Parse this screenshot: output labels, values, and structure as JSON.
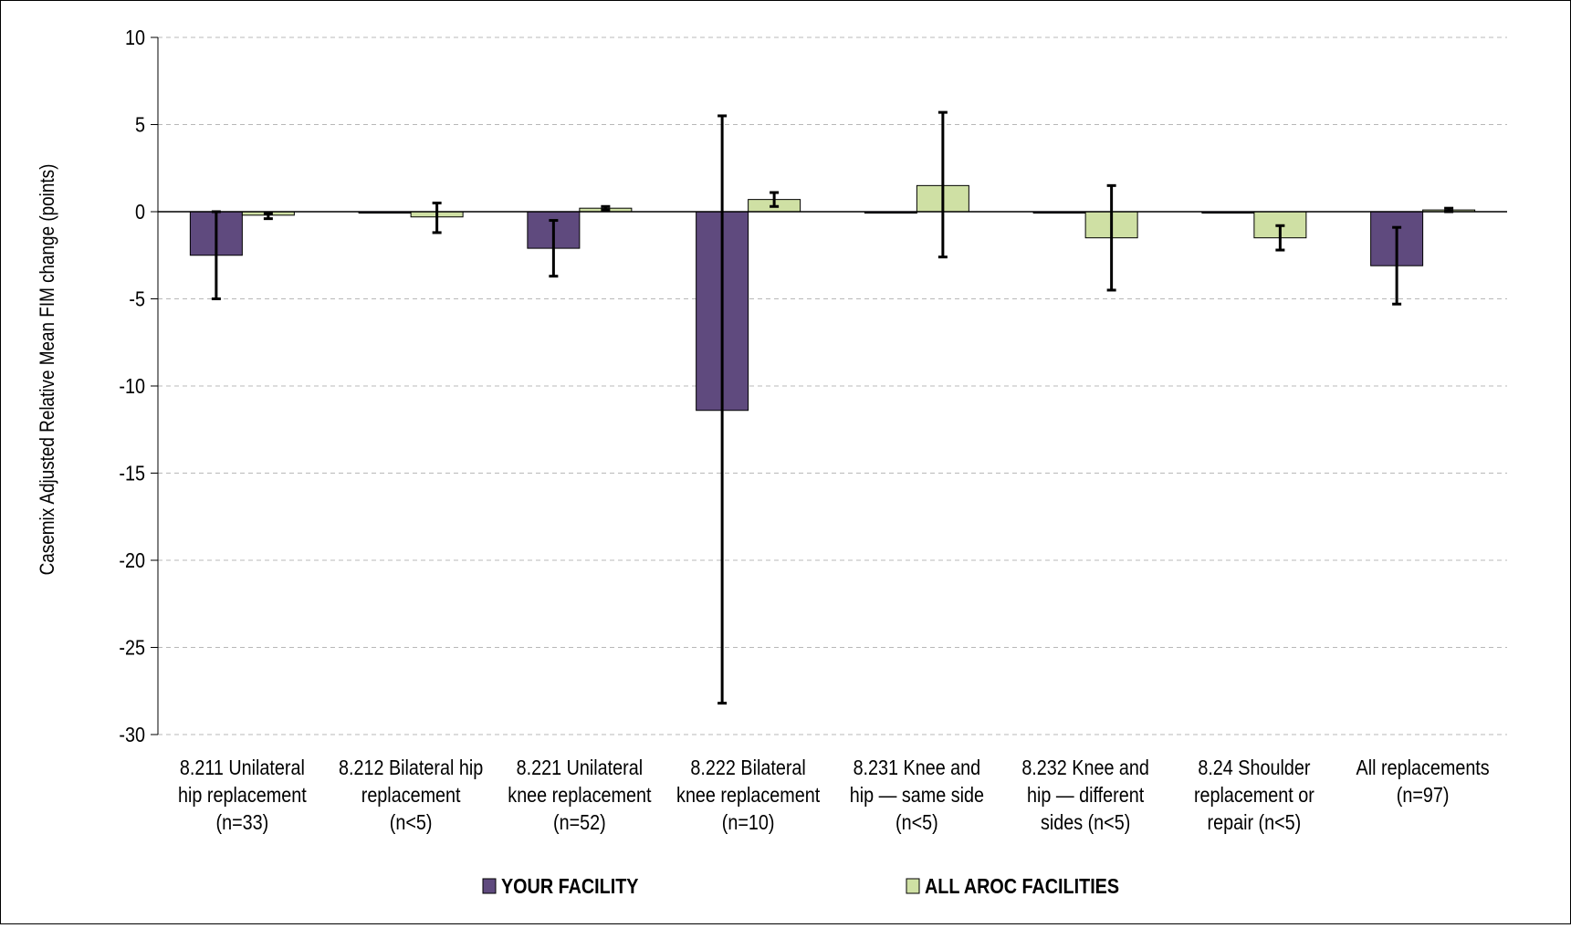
{
  "chart_data": {
    "type": "bar",
    "title": "",
    "xlabel": "",
    "ylabel": "Casemix Adjusted Relative Mean FIM change (points)",
    "ylim": [
      -30,
      10
    ],
    "yticks": [
      10,
      5,
      0,
      -5,
      -10,
      -15,
      -20,
      -25,
      -30
    ],
    "grid": true,
    "legend_position": "bottom",
    "categories": [
      [
        "8.211 Unilateral",
        "hip replacement",
        "(n=33)"
      ],
      [
        "8.212 Bilateral hip",
        "replacement",
        "(n<5)"
      ],
      [
        "8.221 Unilateral",
        "knee replacement",
        "(n=52)"
      ],
      [
        "8.222 Bilateral",
        "knee replacement",
        "(n=10)"
      ],
      [
        "8.231 Knee and",
        "hip — same side",
        "(n<5)"
      ],
      [
        "8.232 Knee and",
        "hip — different",
        "sides (n<5)"
      ],
      [
        "8.24 Shoulder",
        "replacement or",
        "repair (n<5)"
      ],
      [
        "All replacements",
        "(n=97)"
      ]
    ],
    "series": [
      {
        "name": "YOUR FACILITY",
        "color": "#5f4a7e",
        "values": [
          -2.5,
          0,
          -2.1,
          -11.4,
          0,
          0,
          0,
          -3.1
        ],
        "err_low": [
          -5.0,
          0,
          -3.7,
          -28.2,
          0,
          0,
          0,
          -5.3
        ],
        "err_high": [
          0.0,
          0,
          -0.5,
          5.5,
          0,
          0,
          0,
          -0.9
        ]
      },
      {
        "name": "ALL AROC FACILITIES",
        "color": "#cfe0a4",
        "values": [
          -0.2,
          -0.3,
          0.2,
          0.7,
          1.5,
          -1.5,
          -1.5,
          0.1
        ],
        "err_low": [
          -0.4,
          -1.2,
          0.1,
          0.3,
          -2.6,
          -4.5,
          -2.2,
          0.0
        ],
        "err_high": [
          -0.1,
          0.5,
          0.3,
          1.1,
          5.7,
          1.5,
          -0.8,
          0.2
        ]
      }
    ]
  }
}
